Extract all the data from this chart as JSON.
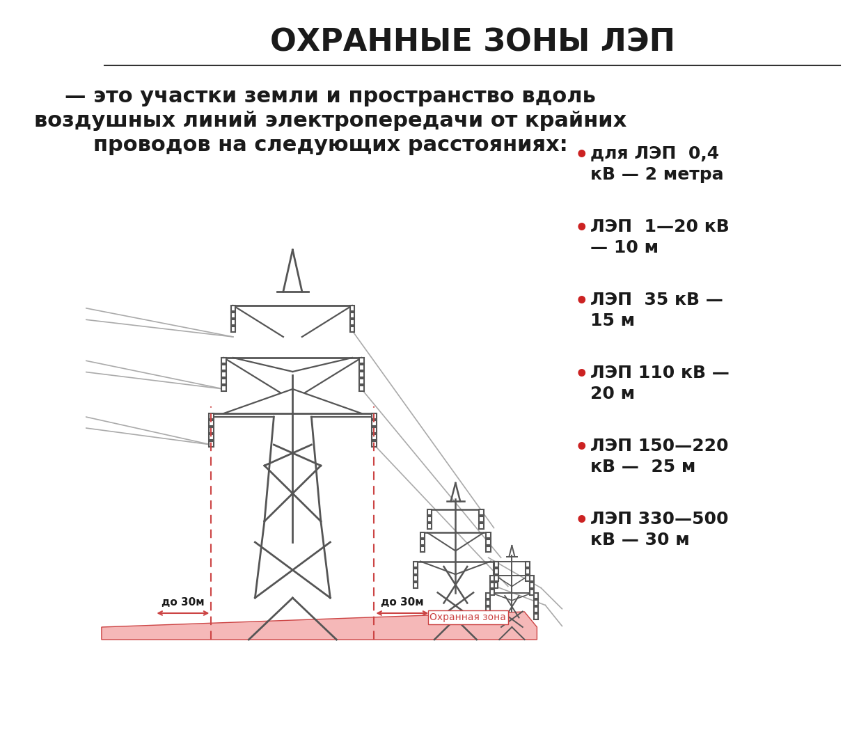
{
  "title": "ОХРАННЫЕ ЗОНЫ ЛЭП",
  "subtitle_line1": "— это участки земли и пространство вдоль",
  "subtitle_line2": "воздушных линий электропередачи от крайних",
  "subtitle_line3": "проводов на следующих расстояниях:",
  "legend_items": [
    {
      "bullet": "•",
      "text": "для ЛЭП  0,4\nкВ — 2 метра"
    },
    {
      "bullet": "•",
      "text": "ЛЭП  1—20 кВ\n— 10 м"
    },
    {
      "bullet": "•",
      "text": "ЛЭП  35 кВ —\n15 м"
    },
    {
      "bullet": "•",
      "text": "ЛЭП 110 кВ —\n20 м"
    },
    {
      "bullet": "•",
      "text": "ЛЭП 150—220\nкВ —  25 м"
    },
    {
      "bullet": "•",
      "text": "ЛЭП 330—500\nкВ — 30 м"
    }
  ],
  "bullet_color": "#cc2222",
  "distance_label1": "до 30м",
  "distance_label2": "до 30м",
  "zone_label": "Охранная зона",
  "tower_color": "#555555",
  "zone_color": "#f5b8b8",
  "zone_edge_color": "#cc4444",
  "bg_color": "#ffffff",
  "separator_color": "#333333",
  "dashed_color": "#cc4444",
  "arrow_color": "#cc4444",
  "title_color": "#1a1a1a",
  "text_color": "#1a1a1a"
}
